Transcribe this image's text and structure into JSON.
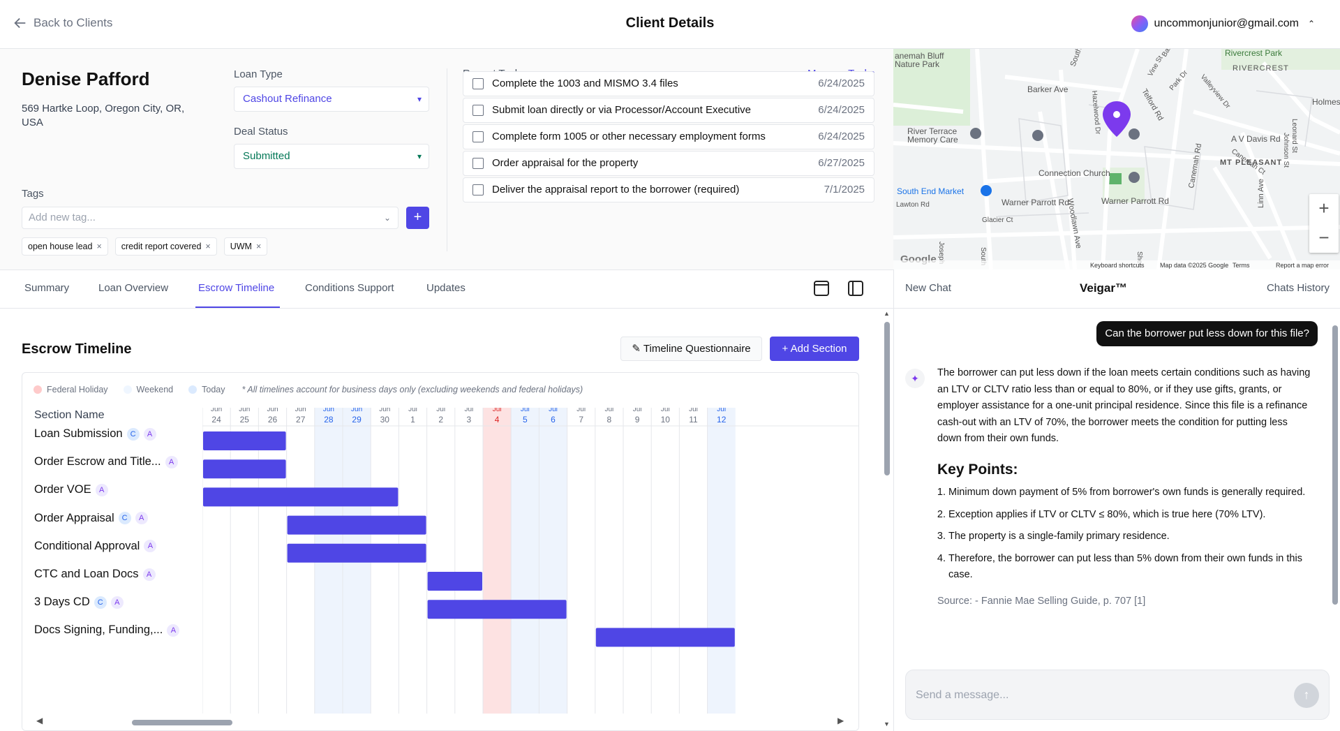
{
  "header": {
    "back_label": "Back to Clients",
    "title": "Client Details",
    "user_email": "uncommonjunior@gmail.com"
  },
  "client": {
    "name": "Denise Pafford",
    "address": "569 Hartke Loop, Oregon City, OR, USA",
    "loan_type_label": "Loan Type",
    "loan_type_value": "Cashout Refinance",
    "deal_status_label": "Deal Status",
    "deal_status_value": "Submitted",
    "tags_label": "Tags",
    "tag_placeholder": "Add new tag...",
    "tags": [
      "open house lead",
      "credit report covered",
      "UWM"
    ]
  },
  "tasks": {
    "title": "Recent Tasks",
    "manage_label": "Manage Tasks",
    "items": [
      {
        "text": "Complete the 1003 and MISMO 3.4 files",
        "date": "6/24/2025"
      },
      {
        "text": "Submit loan directly or via Processor/Account Executive",
        "date": "6/24/2025"
      },
      {
        "text": "Complete form 1005 or other necessary employment forms",
        "date": "6/24/2025"
      },
      {
        "text": "Order appraisal for the property",
        "date": "6/27/2025"
      },
      {
        "text": "Deliver the appraisal report to the borrower (required)",
        "date": "7/1/2025"
      }
    ]
  },
  "map": {
    "labels": [
      "anemah Bluff",
      "Nature Park",
      "Rivercrest Park",
      "RIVERCREST",
      "Barker Ave",
      "River Terrace",
      "Memory Care",
      "Connection Church",
      "South End Market",
      "Warner Parrott Rd",
      "Warner Parrott Rd",
      "MT PLEASANT",
      "A V Davis Rd",
      "Holmes L",
      "Glacier Ct",
      "Lawton Rd",
      "Woodlawn Ave",
      "Canemah Rd",
      "Linn Ave",
      "Telford Rd",
      "Vine St",
      "Barclay",
      "Park Dr",
      "Valleyview Dr",
      "Hazelwood Dr",
      "South",
      "Johnson St",
      "Leonard St",
      "Canemah Ct",
      "Shen",
      "Joseph",
      "South",
      "Google"
    ],
    "footer": [
      "Keyboard shortcuts",
      "Map data ©2025 Google",
      "Terms",
      "Report a map error"
    ]
  },
  "tabs": [
    "Summary",
    "Loan Overview",
    "Escrow Timeline",
    "Conditions Support",
    "Updates"
  ],
  "active_tab": "Escrow Timeline",
  "timeline": {
    "title": "Escrow Timeline",
    "questionnaire_label": "Timeline Questionnaire",
    "add_section_label": "Add Section",
    "legend": [
      {
        "label": "Federal Holiday",
        "color": "#fecaca"
      },
      {
        "label": "Weekend",
        "color": "#eff6ff"
      },
      {
        "label": "Today",
        "color": "#dbeafe"
      }
    ],
    "note": "* All timelines account for business days only (excluding weekends and federal holidays)",
    "section_header": "Section Name",
    "days": [
      {
        "m": "Jun",
        "d": "24",
        "kind": ""
      },
      {
        "m": "Jun",
        "d": "25",
        "kind": ""
      },
      {
        "m": "Jun",
        "d": "26",
        "kind": ""
      },
      {
        "m": "Jun",
        "d": "27",
        "kind": ""
      },
      {
        "m": "Jun",
        "d": "28",
        "kind": "weekend"
      },
      {
        "m": "Jun",
        "d": "29",
        "kind": "weekend"
      },
      {
        "m": "Jun",
        "d": "30",
        "kind": ""
      },
      {
        "m": "Jul",
        "d": "1",
        "kind": ""
      },
      {
        "m": "Jul",
        "d": "2",
        "kind": ""
      },
      {
        "m": "Jul",
        "d": "3",
        "kind": ""
      },
      {
        "m": "Jul",
        "d": "4",
        "kind": "holiday"
      },
      {
        "m": "Jul",
        "d": "5",
        "kind": "weekend"
      },
      {
        "m": "Jul",
        "d": "6",
        "kind": "weekend"
      },
      {
        "m": "Jul",
        "d": "7",
        "kind": ""
      },
      {
        "m": "Jul",
        "d": "8",
        "kind": ""
      },
      {
        "m": "Jul",
        "d": "9",
        "kind": ""
      },
      {
        "m": "Jul",
        "d": "10",
        "kind": ""
      },
      {
        "m": "Jul",
        "d": "11",
        "kind": ""
      },
      {
        "m": "Jul",
        "d": "12",
        "kind": "weekend"
      }
    ],
    "sections": [
      {
        "name": "Loan Submission",
        "badges": [
          "C",
          "A"
        ],
        "start": 0,
        "end": 3
      },
      {
        "name": "Order Escrow and Title...",
        "badges": [
          "A"
        ],
        "start": 0,
        "end": 3
      },
      {
        "name": "Order VOE",
        "badges": [
          "A"
        ],
        "start": 0,
        "end": 7
      },
      {
        "name": "Order Appraisal",
        "badges": [
          "C",
          "A"
        ],
        "start": 3,
        "end": 8
      },
      {
        "name": "Conditional Approval",
        "badges": [
          "A"
        ],
        "start": 3,
        "end": 8
      },
      {
        "name": "CTC and Loan Docs",
        "badges": [
          "A"
        ],
        "start": 8,
        "end": 10
      },
      {
        "name": "3 Days CD",
        "badges": [
          "C",
          "A"
        ],
        "start": 8,
        "end": 13
      },
      {
        "name": "Docs Signing, Funding,...",
        "badges": [
          "A"
        ],
        "start": 14,
        "end": 19
      }
    ],
    "bar_color": "#4f46e5"
  },
  "chat": {
    "new_label": "New Chat",
    "title": "Veigar™",
    "history_label": "Chats History",
    "user_message": "Can the borrower put less down for this file?",
    "answer_intro": "The borrower can put less down if the loan meets certain conditions such as having an LTV or CLTV ratio less than or equal to 80%, or if they use gifts, grants, or employer assistance for a one-unit principal residence. Since this file is a refinance cash-out with an LTV of 70%, the borrower meets the condition for putting less down from their own funds.",
    "key_points_title": "Key Points:",
    "key_points": [
      "Minimum down payment of 5% from borrower's own funds is generally required.",
      "Exception applies if LTV or CLTV ≤ 80%, which is true here (70% LTV).",
      "The property is a single-family primary residence.",
      "Therefore, the borrower can put less than 5% down from their own funds in this case."
    ],
    "source": "Source: - Fannie Mae Selling Guide, p. 707 [1]",
    "input_placeholder": "Send a message..."
  }
}
